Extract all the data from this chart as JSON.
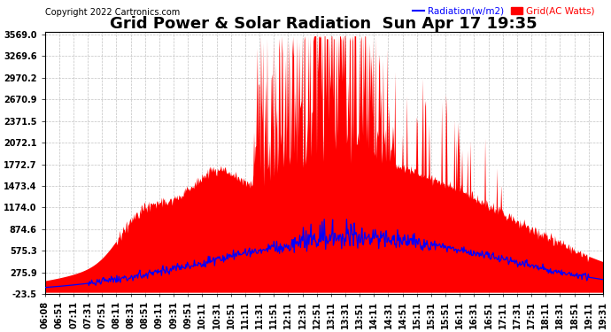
{
  "title": "Grid Power & Solar Radiation  Sun Apr 17 19:35",
  "copyright": "Copyright 2022 Cartronics.com",
  "legend_radiation": "Radiation(w/m2)",
  "legend_grid": "Grid(AC Watts)",
  "legend_radiation_color": "blue",
  "legend_grid_color": "red",
  "ymin": -23.5,
  "ymax": 3569.0,
  "yticks": [
    3569.0,
    3269.6,
    2970.2,
    2670.9,
    2371.5,
    2072.1,
    1772.7,
    1473.4,
    1174.0,
    874.6,
    575.3,
    275.9,
    -23.5
  ],
  "background_color": "#ffffff",
  "grid_color": "#bbbbbb",
  "fill_color": "red",
  "line_color": "blue",
  "title_fontsize": 13,
  "tick_fontsize": 7,
  "copyright_fontsize": 7,
  "time_labels": [
    "06:08",
    "06:51",
    "07:11",
    "07:31",
    "07:51",
    "08:11",
    "08:31",
    "08:51",
    "09:11",
    "09:31",
    "09:51",
    "10:11",
    "10:31",
    "10:51",
    "11:11",
    "11:31",
    "11:51",
    "12:11",
    "12:31",
    "12:51",
    "13:11",
    "13:31",
    "13:51",
    "14:11",
    "14:31",
    "14:51",
    "15:11",
    "15:31",
    "15:51",
    "16:11",
    "16:31",
    "16:51",
    "17:11",
    "17:31",
    "17:51",
    "18:11",
    "18:31",
    "18:51",
    "19:11",
    "19:31"
  ]
}
